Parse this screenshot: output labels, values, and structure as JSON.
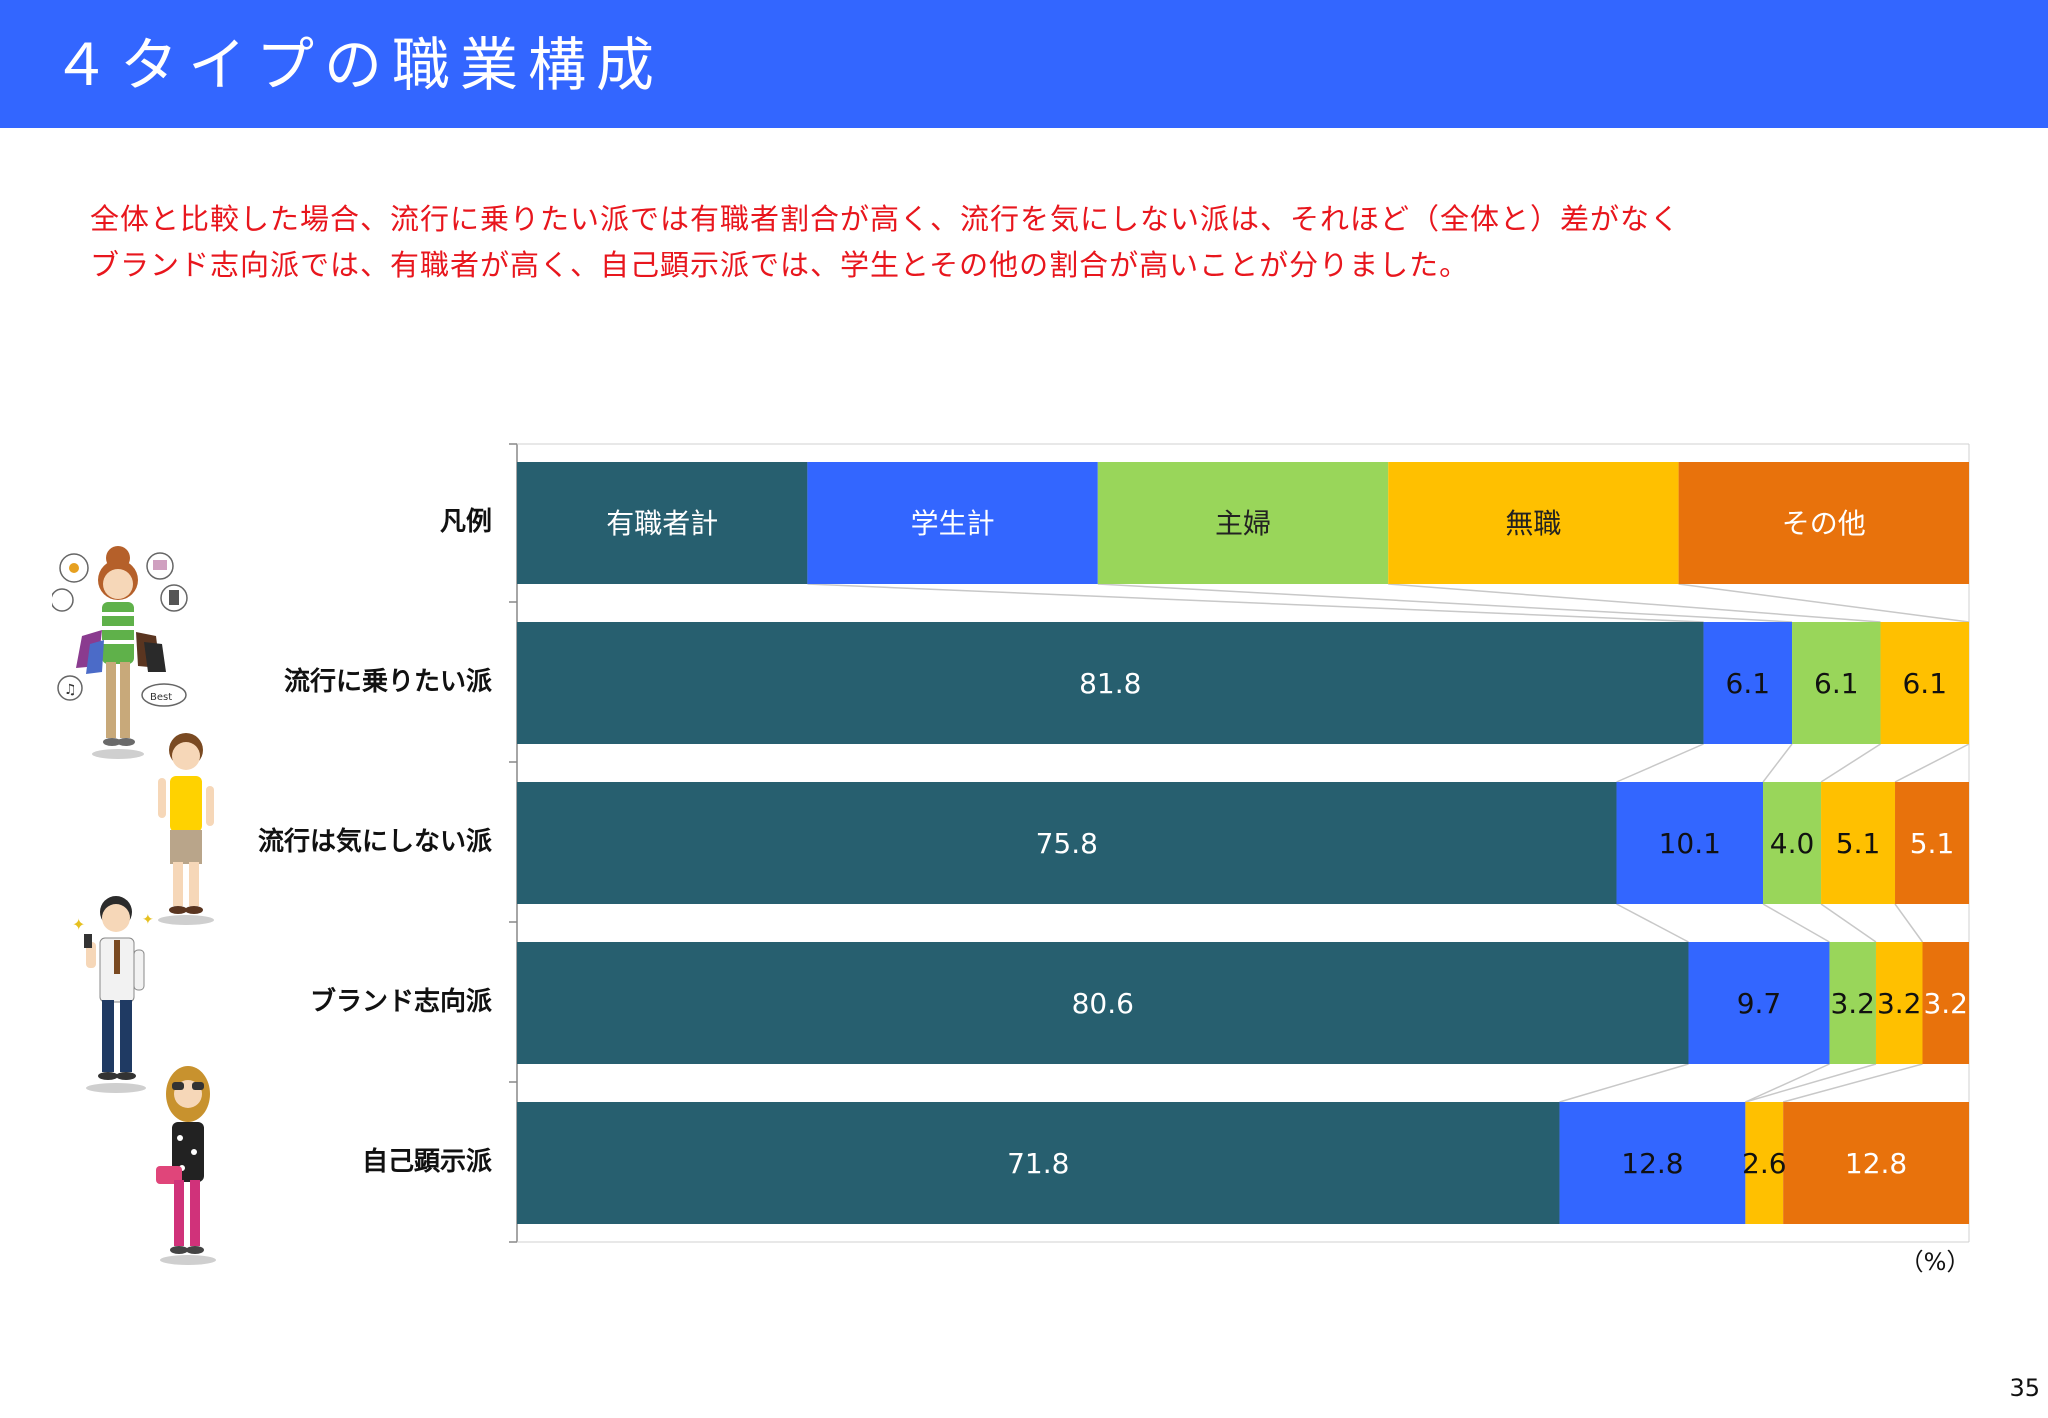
{
  "page": {
    "title": "４タイプの職業構成",
    "summary_lines": [
      "全体と比較した場合、流行に乗りたい派では有職者割合が高く、流行を気にしない派は、それほど（全体と）差がなく",
      "ブランド志向派では、有職者が高く、自己顕示派では、学生とその他の割合が高いことが分りました。"
    ],
    "unit": "（%）",
    "page_number": "35"
  },
  "chart_data": {
    "type": "bar",
    "orientation": "horizontal",
    "stacked": true,
    "stacked_to_100": true,
    "legend_row_label": "凡例",
    "categories": [
      "流行に乗りたい派",
      "流行は気にしない派",
      "ブランド志向派",
      "自己顕示派"
    ],
    "series": [
      {
        "name": "有職者計",
        "color": "#275f6f",
        "values": [
          81.8,
          75.8,
          80.6,
          71.8
        ]
      },
      {
        "name": "学生計",
        "color": "#3366ff",
        "values": [
          6.1,
          10.1,
          9.7,
          12.8
        ]
      },
      {
        "name": "主婦",
        "color": "#99d65a",
        "values": [
          6.1,
          4.0,
          3.2,
          0
        ]
      },
      {
        "name": "無職",
        "color": "#ffc000",
        "values": [
          6.1,
          5.1,
          3.2,
          2.6
        ]
      },
      {
        "name": "その他",
        "color": "#e8720c",
        "values": [
          0,
          5.1,
          3.2,
          12.8
        ]
      }
    ],
    "data_labels": [
      [
        "81.8",
        "6.1",
        "6.1",
        "6.1",
        ""
      ],
      [
        "75.8",
        "10.1",
        "4.0",
        "5.1",
        "5.1"
      ],
      [
        "80.6",
        "9.7",
        "3.2",
        "3.2",
        "3.2"
      ],
      [
        "71.8",
        "12.8",
        "",
        "2.6",
        "12.8"
      ]
    ],
    "connector_lines": true,
    "xlim": [
      0,
      100
    ],
    "grid": false
  },
  "illustrations": [
    {
      "for": "流行に乗りたい派",
      "icon": "shopping-girl-icon",
      "colors": {
        "top": "#5fb14a",
        "pants": "#c8a97a",
        "hair": "#b5602a",
        "bag": "#8a3b8f"
      }
    },
    {
      "for": "流行は気にしない派",
      "icon": "casual-boy-icon",
      "colors": {
        "top": "#ffd200",
        "pants": "#b9a58a",
        "hair": "#7a4a22"
      }
    },
    {
      "for": "ブランド志向派",
      "icon": "phone-man-icon",
      "colors": {
        "top": "#f2f2f2",
        "pants": "#1f3a63",
        "hair": "#2b2b2b",
        "tie": "#7a4a22"
      }
    },
    {
      "for": "自己顕示派",
      "icon": "gal-girl-icon",
      "colors": {
        "top": "#222222",
        "pants": "#d0327a",
        "hair": "#c8922e",
        "bag": "#e0457a"
      }
    }
  ]
}
